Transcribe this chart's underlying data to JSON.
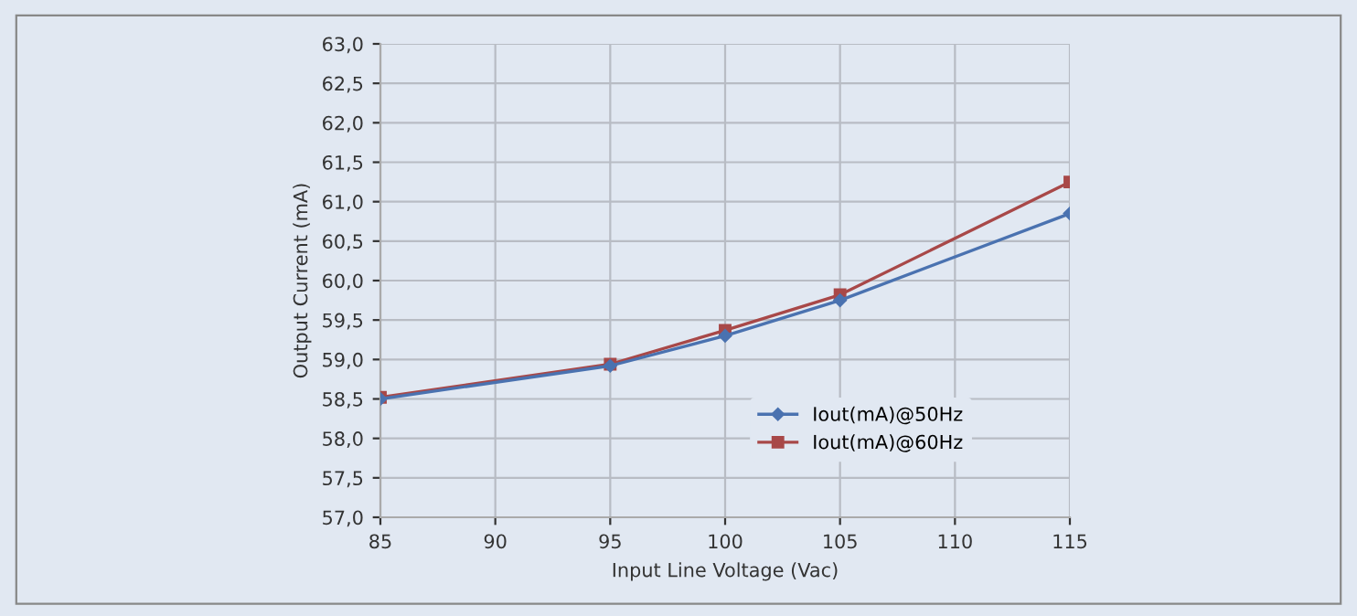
{
  "chart_data": {
    "type": "line",
    "xlabel": "Input Line Voltage (Vac)",
    "ylabel": "Output Current (mA)",
    "x": [
      85,
      95,
      100,
      105,
      115
    ],
    "series": [
      {
        "name": "Iout(mA)@50Hz",
        "color": "#4a72b0",
        "marker": "diamond",
        "values": [
          58.5,
          58.92,
          59.3,
          59.75,
          60.85
        ]
      },
      {
        "name": "Iout(mA)@60Hz",
        "color": "#a84848",
        "marker": "square",
        "values": [
          58.52,
          58.94,
          59.37,
          59.82,
          61.25
        ]
      }
    ],
    "xlim": [
      85,
      115
    ],
    "xticks": [
      85,
      90,
      95,
      100,
      105,
      110,
      115
    ],
    "ylim": [
      57,
      63
    ],
    "yticks": [
      {
        "value": 57,
        "label": "57,0"
      },
      {
        "value": 57.5,
        "label": "57,5"
      },
      {
        "value": 58,
        "label": "58,0"
      },
      {
        "value": 58.5,
        "label": "58,5"
      },
      {
        "value": 59,
        "label": "59,0"
      },
      {
        "value": 59.5,
        "label": "59,5"
      },
      {
        "value": 60,
        "label": "60,0"
      },
      {
        "value": 60.5,
        "label": "60,5"
      },
      {
        "value": 61,
        "label": "61,0"
      },
      {
        "value": 61.5,
        "label": "61,5"
      },
      {
        "value": 62,
        "label": "62,0"
      },
      {
        "value": 62.5,
        "label": "62,5"
      },
      {
        "value": 63,
        "label": "63,0"
      }
    ],
    "grid": true,
    "legend": "lower right",
    "line_style": "solid"
  }
}
